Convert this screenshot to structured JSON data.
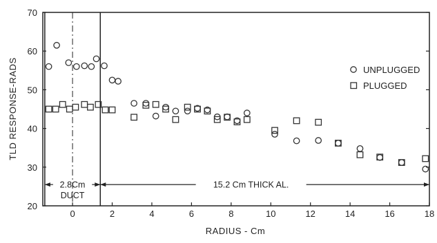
{
  "chart_data": {
    "type": "scatter",
    "xlabel": "RADIUS - Cm",
    "ylabel": "TLD RESPONSE-RADS",
    "xlim": [
      -1.5,
      18
    ],
    "ylim": [
      20,
      70
    ],
    "x_ticks": [
      0,
      2,
      4,
      6,
      8,
      10,
      12,
      14,
      16,
      18
    ],
    "y_ticks": [
      20,
      30,
      40,
      50,
      60,
      70
    ],
    "grid": false,
    "legend_position": "right",
    "series": [
      {
        "name": "UNPLUGGED",
        "marker": "circle",
        "points": [
          [
            -1.2,
            56.0
          ],
          [
            -0.8,
            61.5
          ],
          [
            -0.2,
            57.0
          ],
          [
            0.2,
            56.0
          ],
          [
            0.6,
            56.2
          ],
          [
            0.95,
            56.0
          ],
          [
            1.2,
            58.0
          ],
          [
            1.6,
            56.2
          ],
          [
            2.0,
            52.5
          ],
          [
            2.3,
            52.2
          ],
          [
            3.1,
            46.5
          ],
          [
            3.7,
            46.5
          ],
          [
            4.2,
            43.2
          ],
          [
            4.7,
            45.5
          ],
          [
            5.2,
            44.5
          ],
          [
            5.8,
            44.5
          ],
          [
            6.3,
            45.2
          ],
          [
            6.8,
            44.8
          ],
          [
            7.3,
            43.0
          ],
          [
            7.8,
            43.0
          ],
          [
            8.3,
            42.0
          ],
          [
            8.8,
            44.0
          ],
          [
            10.2,
            38.5
          ],
          [
            11.3,
            36.8
          ],
          [
            12.4,
            36.9
          ],
          [
            13.4,
            36.2
          ],
          [
            14.5,
            34.8
          ],
          [
            15.5,
            32.5
          ],
          [
            16.6,
            31.2
          ],
          [
            17.8,
            29.5
          ]
        ]
      },
      {
        "name": "PLUGGED",
        "marker": "square",
        "points": [
          [
            -1.2,
            45.0
          ],
          [
            -0.85,
            45.0
          ],
          [
            -0.5,
            46.2
          ],
          [
            -0.15,
            45.0
          ],
          [
            0.15,
            45.5
          ],
          [
            0.6,
            46.2
          ],
          [
            0.9,
            45.5
          ],
          [
            1.3,
            46.2
          ],
          [
            1.65,
            44.8
          ],
          [
            2.0,
            44.8
          ],
          [
            3.1,
            42.9
          ],
          [
            3.7,
            46.0
          ],
          [
            4.2,
            46.2
          ],
          [
            4.7,
            45.0
          ],
          [
            5.2,
            42.3
          ],
          [
            5.8,
            45.5
          ],
          [
            6.3,
            45.0
          ],
          [
            6.8,
            44.5
          ],
          [
            7.3,
            42.3
          ],
          [
            7.8,
            42.9
          ],
          [
            8.3,
            41.7
          ],
          [
            8.8,
            42.3
          ],
          [
            10.2,
            39.5
          ],
          [
            11.3,
            42.0
          ],
          [
            12.4,
            41.6
          ],
          [
            13.4,
            36.2
          ],
          [
            14.5,
            33.2
          ],
          [
            15.5,
            32.6
          ],
          [
            16.6,
            31.2
          ],
          [
            17.8,
            32.2
          ]
        ]
      }
    ],
    "annotations": {
      "duct_label_1": "2.8Cm",
      "duct_label_2": "DUCT",
      "thick_label": "15.2 Cm THICK AL."
    }
  }
}
